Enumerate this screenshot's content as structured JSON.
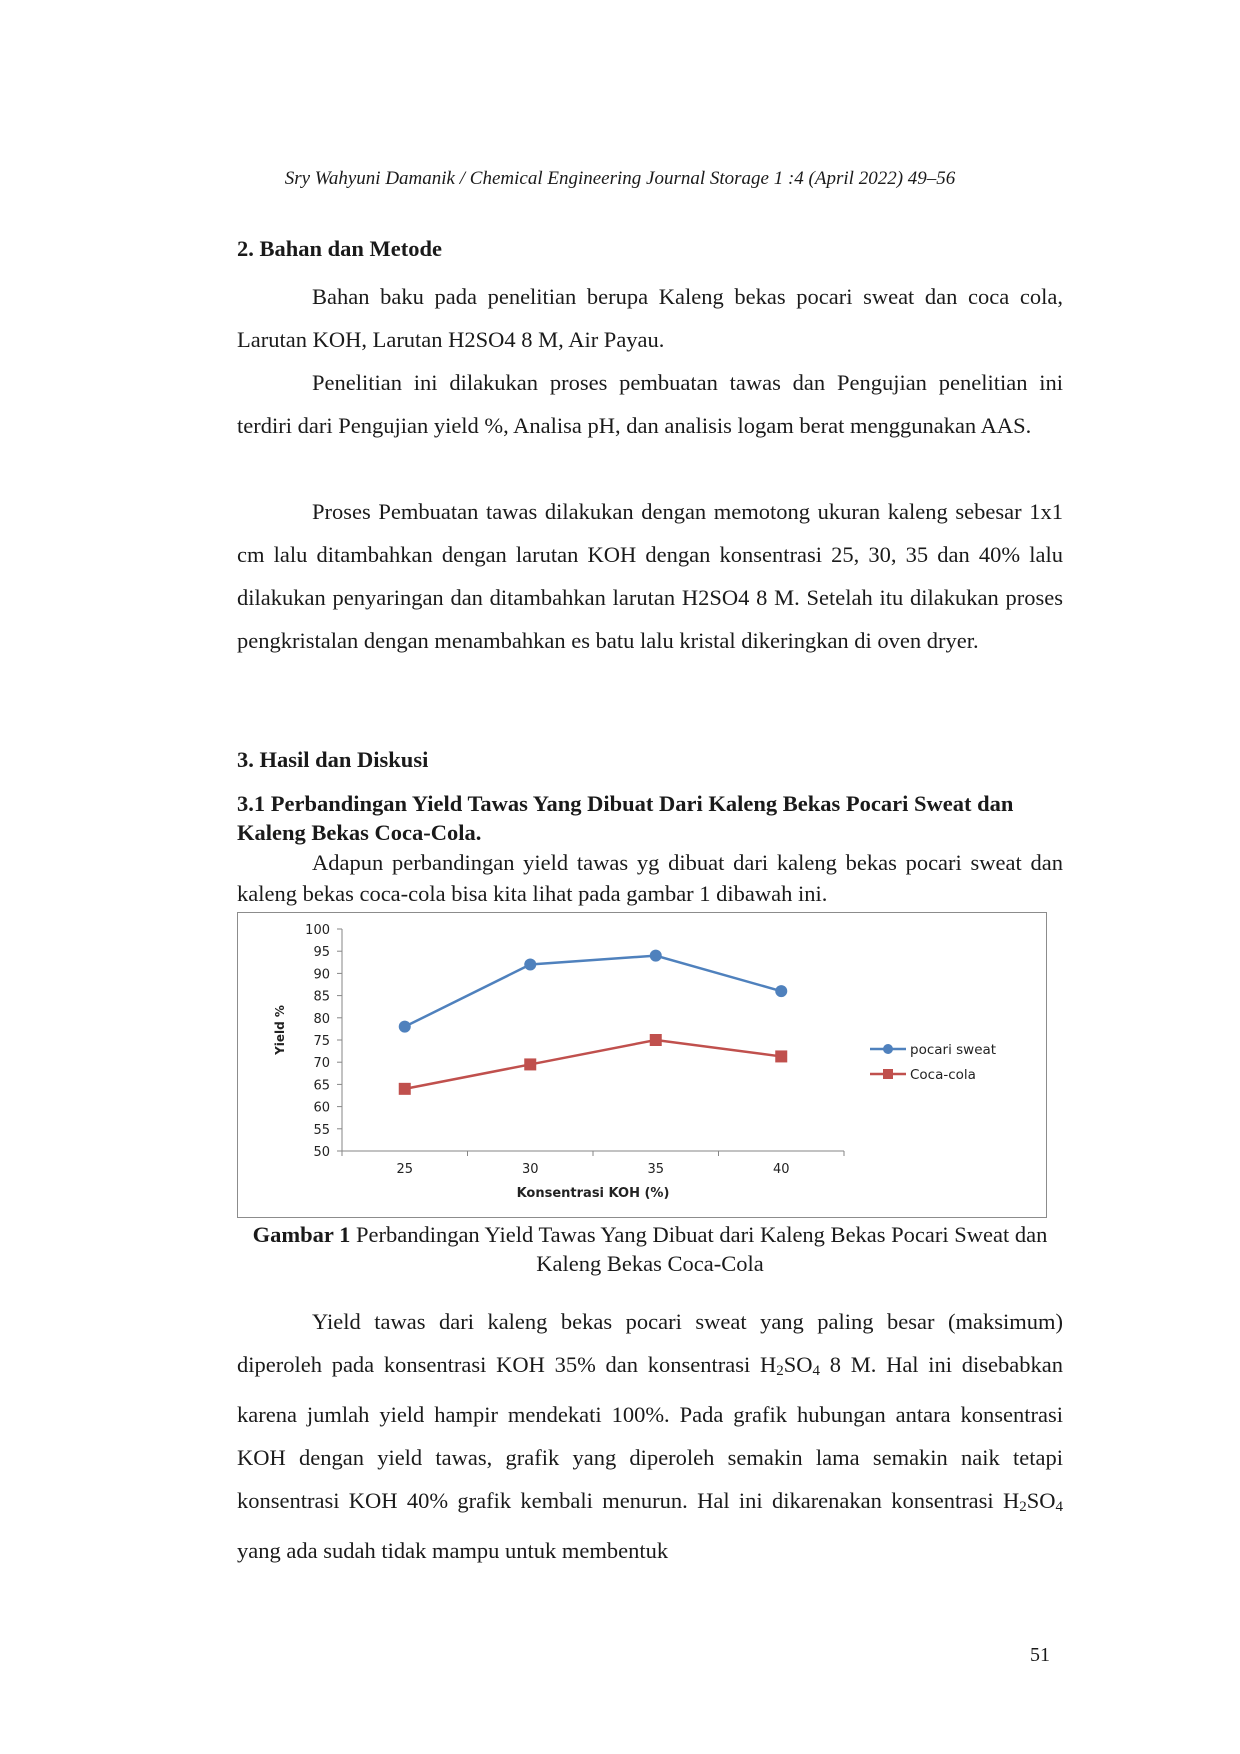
{
  "header": "Sry Wahyuni Damanik / Chemical Engineering Journal Storage 1 :4 (April 2022) 49–56",
  "section2": {
    "title": "2. Bahan dan Metode",
    "p1": "Bahan baku pada penelitian berupa Kaleng bekas pocari sweat dan coca cola, Larutan KOH, Larutan H2SO4  8 M, Air Payau.",
    "p2": "Penelitian ini dilakukan proses pembuatan tawas dan Pengujian penelitian ini terdiri dari Pengujian yield %, Analisa pH, dan analisis logam berat menggunakan AAS.",
    "p3": "Proses Pembuatan tawas dilakukan dengan memotong ukuran kaleng sebesar 1x1 cm lalu ditambahkan dengan larutan KOH dengan konsentrasi 25, 30, 35 dan 40% lalu dilakukan penyaringan dan ditambahkan larutan H2SO4 8 M. Setelah itu dilakukan proses pengkristalan dengan menambahkan es batu lalu kristal dikeringkan di oven dryer."
  },
  "section3": {
    "title": "3. Hasil dan Diskusi",
    "subtitle": "3.1 Perbandingan Yield Tawas Yang Dibuat Dari Kaleng Bekas Pocari Sweat dan Kaleng Bekas Coca-Cola.",
    "intro": "Adapun perbandingan yield tawas yg dibuat dari kaleng bekas pocari sweat dan kaleng bekas coca-cola bisa kita lihat pada gambar 1 dibawah ini.",
    "caption_label": "Gambar 1",
    "caption_text": " Perbandingan Yield Tawas Yang Dibuat dari Kaleng Bekas Pocari Sweat dan Kaleng Bekas Coca-Cola",
    "body": {
      "t1": "Yield tawas dari kaleng bekas pocari sweat yang paling besar (maksimum) diperoleh pada konsentrasi KOH 35% dan konsentrasi H",
      "sub1a": "2",
      "t2": "SO",
      "sub1b": "4",
      "t3": " 8 M. Hal ini disebabkan karena jumlah yield hampir  mendekati 100%. Pada grafik hubungan antara konsentrasi KOH dengan yield tawas, grafik yang diperoleh semakin lama semakin naik tetapi konsentrasi KOH 40% grafik kembali menurun. Hal ini dikarenakan konsentrasi H",
      "sub2a": "2",
      "t4": "SO",
      "sub2b": "4",
      "t5": " yang ada sudah tidak mampu untuk membentuk"
    }
  },
  "page_number": "51",
  "chart_data": {
    "type": "line",
    "categories": [
      "25",
      "30",
      "35",
      "40"
    ],
    "xlabel": "Konsentrasi KOH (%)",
    "ylabel": "Yield %",
    "ylim": [
      50,
      100
    ],
    "yticks": [
      "50",
      "55",
      "60",
      "65",
      "70",
      "75",
      "80",
      "85",
      "90",
      "95",
      "100"
    ],
    "legend_position": "right",
    "series": [
      {
        "name": "pocari sweat",
        "values": [
          78,
          92,
          94,
          86
        ],
        "color": "#4f81bd",
        "marker": "circle"
      },
      {
        "name": "Coca-cola",
        "values": [
          64,
          69.5,
          75,
          71.3
        ],
        "color": "#c0504d",
        "marker": "square"
      }
    ]
  }
}
